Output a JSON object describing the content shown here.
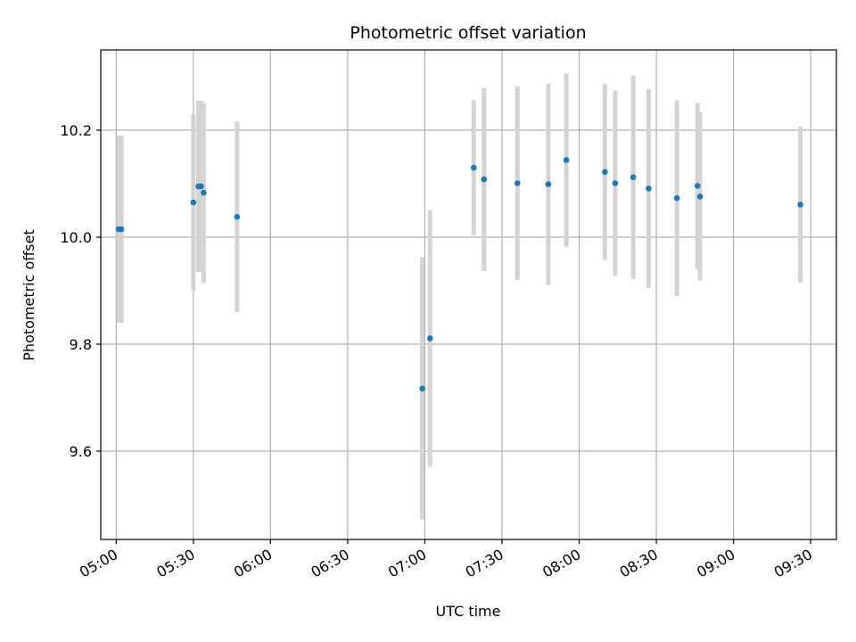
{
  "chart_data": {
    "type": "scatter",
    "title": "Photometric offset variation",
    "xlabel": "UTC time",
    "ylabel": "Photometric offset",
    "xlim": [
      "04:54",
      "09:40"
    ],
    "ylim": [
      9.435,
      10.35
    ],
    "grid": true,
    "x_ticks": [
      "05:00",
      "05:30",
      "06:00",
      "06:30",
      "07:00",
      "07:30",
      "08:00",
      "08:30",
      "09:00",
      "09:30"
    ],
    "y_ticks": [
      "9.6",
      "9.8",
      "10.0",
      "10.2"
    ],
    "series": [
      {
        "color": "#1f77b4",
        "errorbar_color": "#d3d3d3",
        "points": [
          {
            "t": "05:01",
            "y": 10.015,
            "err": 0.175
          },
          {
            "t": "05:02",
            "y": 10.015,
            "err": 0.175
          },
          {
            "t": "05:30",
            "y": 10.065,
            "err": 0.165
          },
          {
            "t": "05:32",
            "y": 10.095,
            "err": 0.16
          },
          {
            "t": "05:33",
            "y": 10.095,
            "err": 0.16
          },
          {
            "t": "05:34",
            "y": 10.083,
            "err": 0.168
          },
          {
            "t": "05:47",
            "y": 10.038,
            "err": 0.178
          },
          {
            "t": "06:59",
            "y": 9.717,
            "err": 0.245
          },
          {
            "t": "07:02",
            "y": 9.811,
            "err": 0.24
          },
          {
            "t": "07:19",
            "y": 10.13,
            "err": 0.126
          },
          {
            "t": "07:23",
            "y": 10.108,
            "err": 0.171
          },
          {
            "t": "07:36",
            "y": 10.101,
            "err": 0.181
          },
          {
            "t": "07:48",
            "y": 10.099,
            "err": 0.188
          },
          {
            "t": "07:55",
            "y": 10.144,
            "err": 0.162
          },
          {
            "t": "08:10",
            "y": 10.122,
            "err": 0.164
          },
          {
            "t": "08:14",
            "y": 10.101,
            "err": 0.173
          },
          {
            "t": "08:21",
            "y": 10.112,
            "err": 0.19
          },
          {
            "t": "08:27",
            "y": 10.091,
            "err": 0.186
          },
          {
            "t": "08:38",
            "y": 10.073,
            "err": 0.183
          },
          {
            "t": "08:46",
            "y": 10.096,
            "err": 0.155
          },
          {
            "t": "08:47",
            "y": 10.076,
            "err": 0.157
          },
          {
            "t": "09:26",
            "y": 10.061,
            "err": 0.146
          }
        ]
      }
    ]
  }
}
